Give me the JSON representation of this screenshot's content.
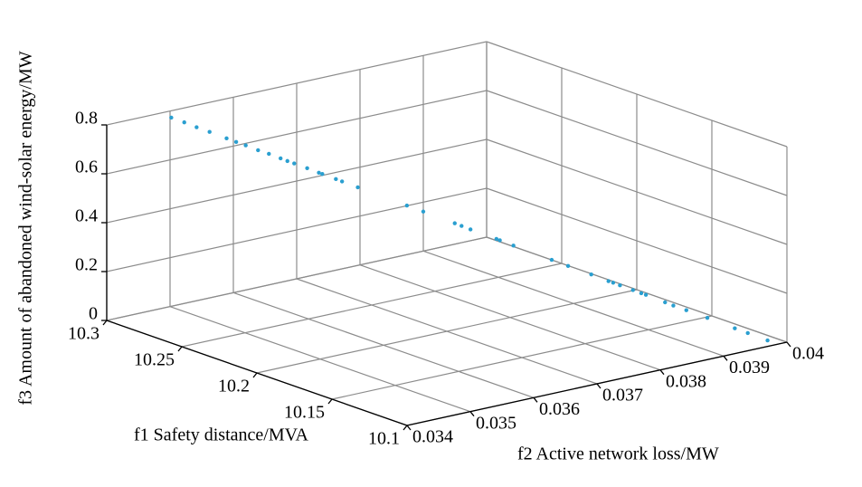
{
  "chart_data": {
    "type": "scatter3d",
    "xlabel": "f1 Safety distance/MVA",
    "ylabel": "f2 Active network loss/MW",
    "zlabel": "f3 Amount of abandoned wind-solar energy/MW",
    "xlim": [
      10.1,
      10.3
    ],
    "xticks": [
      10.3,
      10.25,
      10.2,
      10.15,
      10.1
    ],
    "ylim": [
      0.034,
      0.04
    ],
    "yticks": [
      0.034,
      0.035,
      0.036,
      0.037,
      0.038,
      0.039,
      0.04
    ],
    "zlim": [
      0,
      0.8
    ],
    "zticks": [
      0,
      0.2,
      0.4,
      0.6,
      0.8
    ],
    "grid": true,
    "color": "#2a9fd0",
    "x": [
      10.292,
      10.288,
      10.284,
      10.28,
      10.275,
      10.272,
      10.269,
      10.265,
      10.262,
      10.258,
      10.256,
      10.254,
      10.25,
      10.246,
      10.245,
      10.241,
      10.239,
      10.234,
      10.219,
      10.214,
      10.204,
      10.202,
      10.199,
      10.191,
      10.19,
      10.186,
      10.174,
      10.169,
      10.162,
      10.156,
      10.155,
      10.153,
      10.149,
      10.146,
      10.145,
      10.139,
      10.136,
      10.132,
      10.126,
      10.117,
      10.113,
      10.107
    ],
    "y": [
      0.03483,
      0.03494,
      0.03504,
      0.03515,
      0.0353,
      0.03538,
      0.03546,
      0.03556,
      0.03566,
      0.03575,
      0.03581,
      0.03587,
      0.03598,
      0.03607,
      0.0361,
      0.03622,
      0.03627,
      0.0364,
      0.03682,
      0.03696,
      0.03722,
      0.03728,
      0.03735,
      0.03757,
      0.0376,
      0.03772,
      0.03804,
      0.03818,
      0.03838,
      0.03851,
      0.03856,
      0.03862,
      0.03873,
      0.03879,
      0.03884,
      0.039,
      0.03906,
      0.03917,
      0.03936,
      0.03958,
      0.03969,
      0.03986
    ],
    "z": [
      0.8,
      0.783,
      0.766,
      0.749,
      0.725,
      0.712,
      0.7,
      0.683,
      0.669,
      0.654,
      0.644,
      0.635,
      0.618,
      0.603,
      0.598,
      0.579,
      0.571,
      0.55,
      0.484,
      0.462,
      0.421,
      0.411,
      0.399,
      0.365,
      0.36,
      0.34,
      0.289,
      0.267,
      0.236,
      0.214,
      0.207,
      0.197,
      0.18,
      0.17,
      0.163,
      0.136,
      0.126,
      0.109,
      0.08,
      0.044,
      0.027,
      0.0
    ]
  }
}
